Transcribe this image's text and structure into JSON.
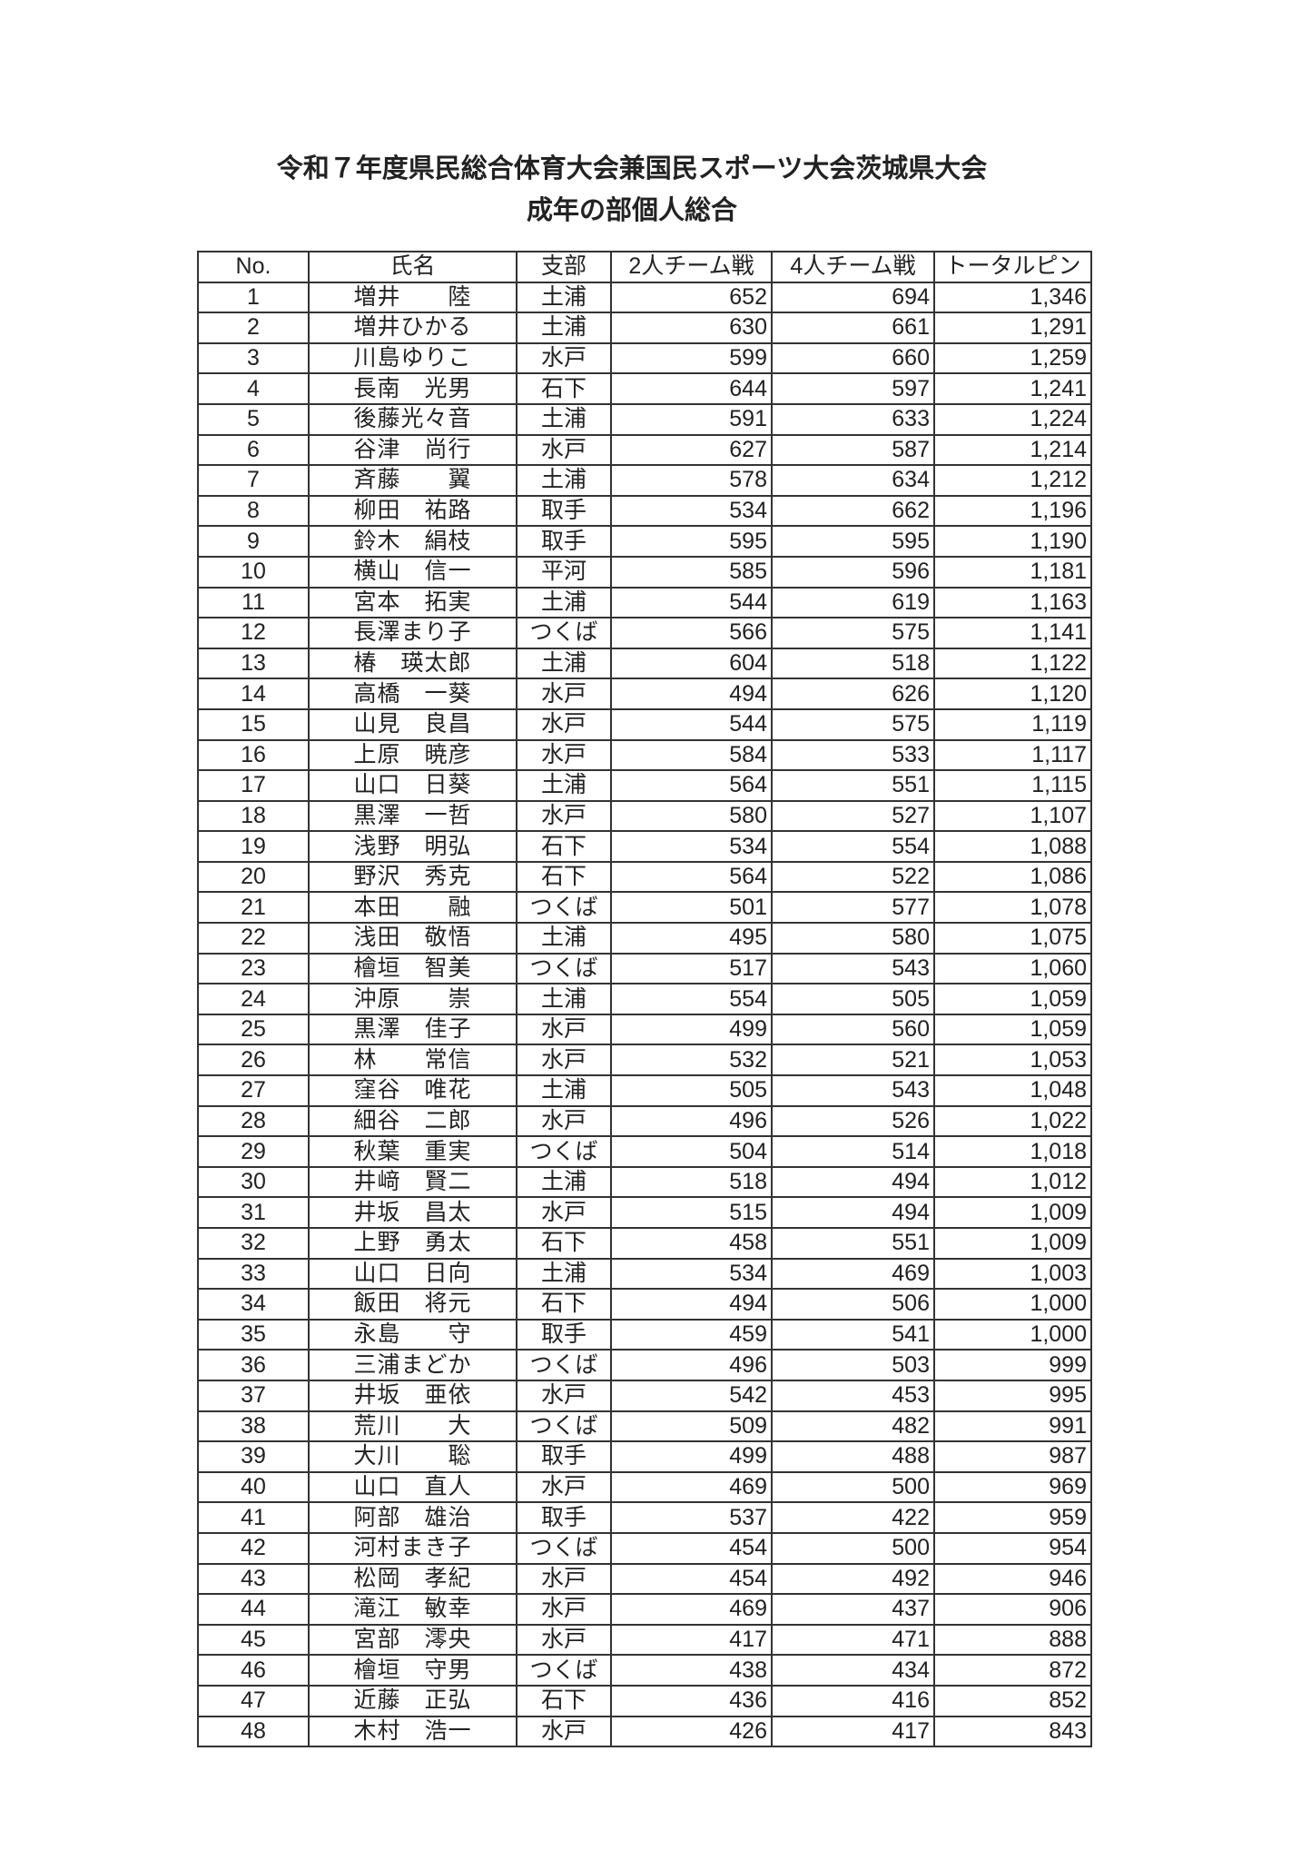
{
  "title": "令和７年度県民総合体育大会兼国民スポーツ大会茨城県大会",
  "subtitle": "成年の部個人総合",
  "headers": [
    "No.",
    "氏名",
    "支部",
    "2人チーム戦",
    "4人チーム戦",
    "トータルピン"
  ],
  "rows": [
    [
      "1",
      "増井　　陸",
      "土浦",
      "652",
      "694",
      "1,346"
    ],
    [
      "2",
      "増井ひかる",
      "土浦",
      "630",
      "661",
      "1,291"
    ],
    [
      "3",
      "川島ゆりこ",
      "水戸",
      "599",
      "660",
      "1,259"
    ],
    [
      "4",
      "長南　光男",
      "石下",
      "644",
      "597",
      "1,241"
    ],
    [
      "5",
      "後藤光々音",
      "土浦",
      "591",
      "633",
      "1,224"
    ],
    [
      "6",
      "谷津　尚行",
      "水戸",
      "627",
      "587",
      "1,214"
    ],
    [
      "7",
      "斉藤　　翼",
      "土浦",
      "578",
      "634",
      "1,212"
    ],
    [
      "8",
      "柳田　祐路",
      "取手",
      "534",
      "662",
      "1,196"
    ],
    [
      "9",
      "鈴木　絹枝",
      "取手",
      "595",
      "595",
      "1,190"
    ],
    [
      "10",
      "横山　信一",
      "平河",
      "585",
      "596",
      "1,181"
    ],
    [
      "11",
      "宮本　拓実",
      "土浦",
      "544",
      "619",
      "1,163"
    ],
    [
      "12",
      "長澤まり子",
      "つくば",
      "566",
      "575",
      "1,141"
    ],
    [
      "13",
      "椿　瑛太郎",
      "土浦",
      "604",
      "518",
      "1,122"
    ],
    [
      "14",
      "高橋　一葵",
      "水戸",
      "494",
      "626",
      "1,120"
    ],
    [
      "15",
      "山見　良昌",
      "水戸",
      "544",
      "575",
      "1,119"
    ],
    [
      "16",
      "上原　暁彦",
      "水戸",
      "584",
      "533",
      "1,117"
    ],
    [
      "17",
      "山口　日葵",
      "土浦",
      "564",
      "551",
      "1,115"
    ],
    [
      "18",
      "黒澤　一哲",
      "水戸",
      "580",
      "527",
      "1,107"
    ],
    [
      "19",
      "浅野　明弘",
      "石下",
      "534",
      "554",
      "1,088"
    ],
    [
      "20",
      "野沢　秀克",
      "石下",
      "564",
      "522",
      "1,086"
    ],
    [
      "21",
      "本田　　融",
      "つくば",
      "501",
      "577",
      "1,078"
    ],
    [
      "22",
      "浅田　敬悟",
      "土浦",
      "495",
      "580",
      "1,075"
    ],
    [
      "23",
      "檜垣　智美",
      "つくば",
      "517",
      "543",
      "1,060"
    ],
    [
      "24",
      "沖原　　崇",
      "土浦",
      "554",
      "505",
      "1,059"
    ],
    [
      "25",
      "黒澤　佳子",
      "水戸",
      "499",
      "560",
      "1,059"
    ],
    [
      "26",
      "林　　常信",
      "水戸",
      "532",
      "521",
      "1,053"
    ],
    [
      "27",
      "窪谷　唯花",
      "土浦",
      "505",
      "543",
      "1,048"
    ],
    [
      "28",
      "細谷　二郎",
      "水戸",
      "496",
      "526",
      "1,022"
    ],
    [
      "29",
      "秋葉　重実",
      "つくば",
      "504",
      "514",
      "1,018"
    ],
    [
      "30",
      "井﨑　賢二",
      "土浦",
      "518",
      "494",
      "1,012"
    ],
    [
      "31",
      "井坂　昌太",
      "水戸",
      "515",
      "494",
      "1,009"
    ],
    [
      "32",
      "上野　勇太",
      "石下",
      "458",
      "551",
      "1,009"
    ],
    [
      "33",
      "山口　日向",
      "土浦",
      "534",
      "469",
      "1,003"
    ],
    [
      "34",
      "飯田　将元",
      "石下",
      "494",
      "506",
      "1,000"
    ],
    [
      "35",
      "永島　　守",
      "取手",
      "459",
      "541",
      "1,000"
    ],
    [
      "36",
      "三浦まどか",
      "つくば",
      "496",
      "503",
      "999"
    ],
    [
      "37",
      "井坂　亜依",
      "水戸",
      "542",
      "453",
      "995"
    ],
    [
      "38",
      "荒川　　大",
      "つくば",
      "509",
      "482",
      "991"
    ],
    [
      "39",
      "大川　　聡",
      "取手",
      "499",
      "488",
      "987"
    ],
    [
      "40",
      "山口　直人",
      "水戸",
      "469",
      "500",
      "969"
    ],
    [
      "41",
      "阿部　雄治",
      "取手",
      "537",
      "422",
      "959"
    ],
    [
      "42",
      "河村まき子",
      "つくば",
      "454",
      "500",
      "954"
    ],
    [
      "43",
      "松岡　孝紀",
      "水戸",
      "454",
      "492",
      "946"
    ],
    [
      "44",
      "滝江　敏幸",
      "水戸",
      "469",
      "437",
      "906"
    ],
    [
      "45",
      "宮部　澪央",
      "水戸",
      "417",
      "471",
      "888"
    ],
    [
      "46",
      "檜垣　守男",
      "つくば",
      "438",
      "434",
      "872"
    ],
    [
      "47",
      "近藤　正弘",
      "石下",
      "436",
      "416",
      "852"
    ],
    [
      "48",
      "木村　浩一",
      "水戸",
      "426",
      "417",
      "843"
    ]
  ]
}
